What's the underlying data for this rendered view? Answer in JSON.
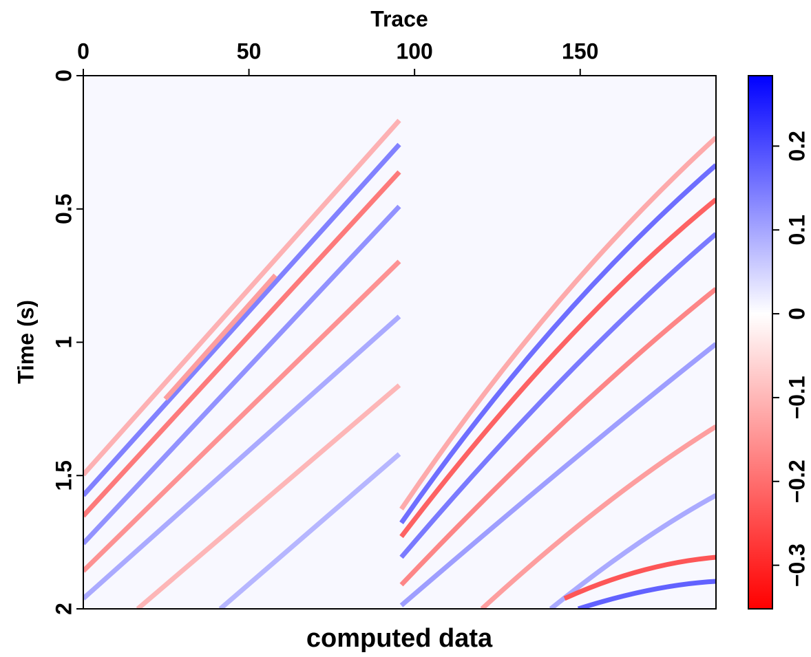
{
  "chart_data": {
    "type": "image",
    "title": "Trace",
    "xlabel": "computed data",
    "ylabel": "Time (s)",
    "xlim": [
      0,
      191
    ],
    "xticks": [
      0,
      50,
      100,
      150
    ],
    "ylim": [
      0,
      2
    ],
    "yticks": [
      0,
      {
        "value": 0.5,
        "label": "0.5"
      },
      1,
      {
        "value": 1.5,
        "label": "1.5"
      },
      2
    ],
    "colorbar": {
      "clim": [
        -0.352,
        0.284
      ],
      "colors": [
        "#ff0000",
        "#ffffff",
        "#0000ff"
      ],
      "ticks": [
        {
          "value": -0.3,
          "label": "−0.3"
        },
        {
          "value": -0.2,
          "label": "−0.2"
        },
        {
          "value": -0.1,
          "label": "−0.1"
        },
        0,
        {
          "value": 0.1,
          "label": "0.1"
        },
        {
          "value": 0.2,
          "label": "0.2"
        }
      ]
    }
  }
}
